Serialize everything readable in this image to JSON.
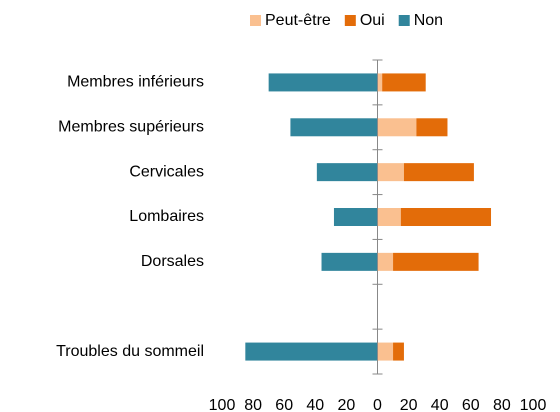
{
  "chart_data": {
    "type": "bar",
    "orientation": "horizontal",
    "stacked": true,
    "categories": [
      "Membres inférieurs",
      "Membres supérieurs",
      "Cervicales",
      "Lombaires",
      "Dorsales",
      null,
      "Troubles du sommeil"
    ],
    "series": [
      {
        "name": "Peut-être",
        "color": "#fac090",
        "values": [
          3,
          25,
          17,
          15,
          10,
          null,
          10
        ]
      },
      {
        "name": "Oui",
        "color": "#e36c09",
        "values": [
          28,
          20,
          45,
          58,
          55,
          null,
          7
        ]
      },
      {
        "name": "Non",
        "color": "#31859c",
        "values": [
          -70,
          -56,
          -39,
          -28,
          -36,
          null,
          -85
        ]
      }
    ],
    "xlim": [
      -100,
      100
    ],
    "xticks": [
      {
        "value": -100,
        "label": "100"
      },
      {
        "value": -80,
        "label": "80"
      },
      {
        "value": -60,
        "label": "60"
      },
      {
        "value": -40,
        "label": "40"
      },
      {
        "value": -20,
        "label": "20"
      },
      0,
      20,
      40,
      60,
      80,
      100
    ],
    "legend": "top"
  }
}
